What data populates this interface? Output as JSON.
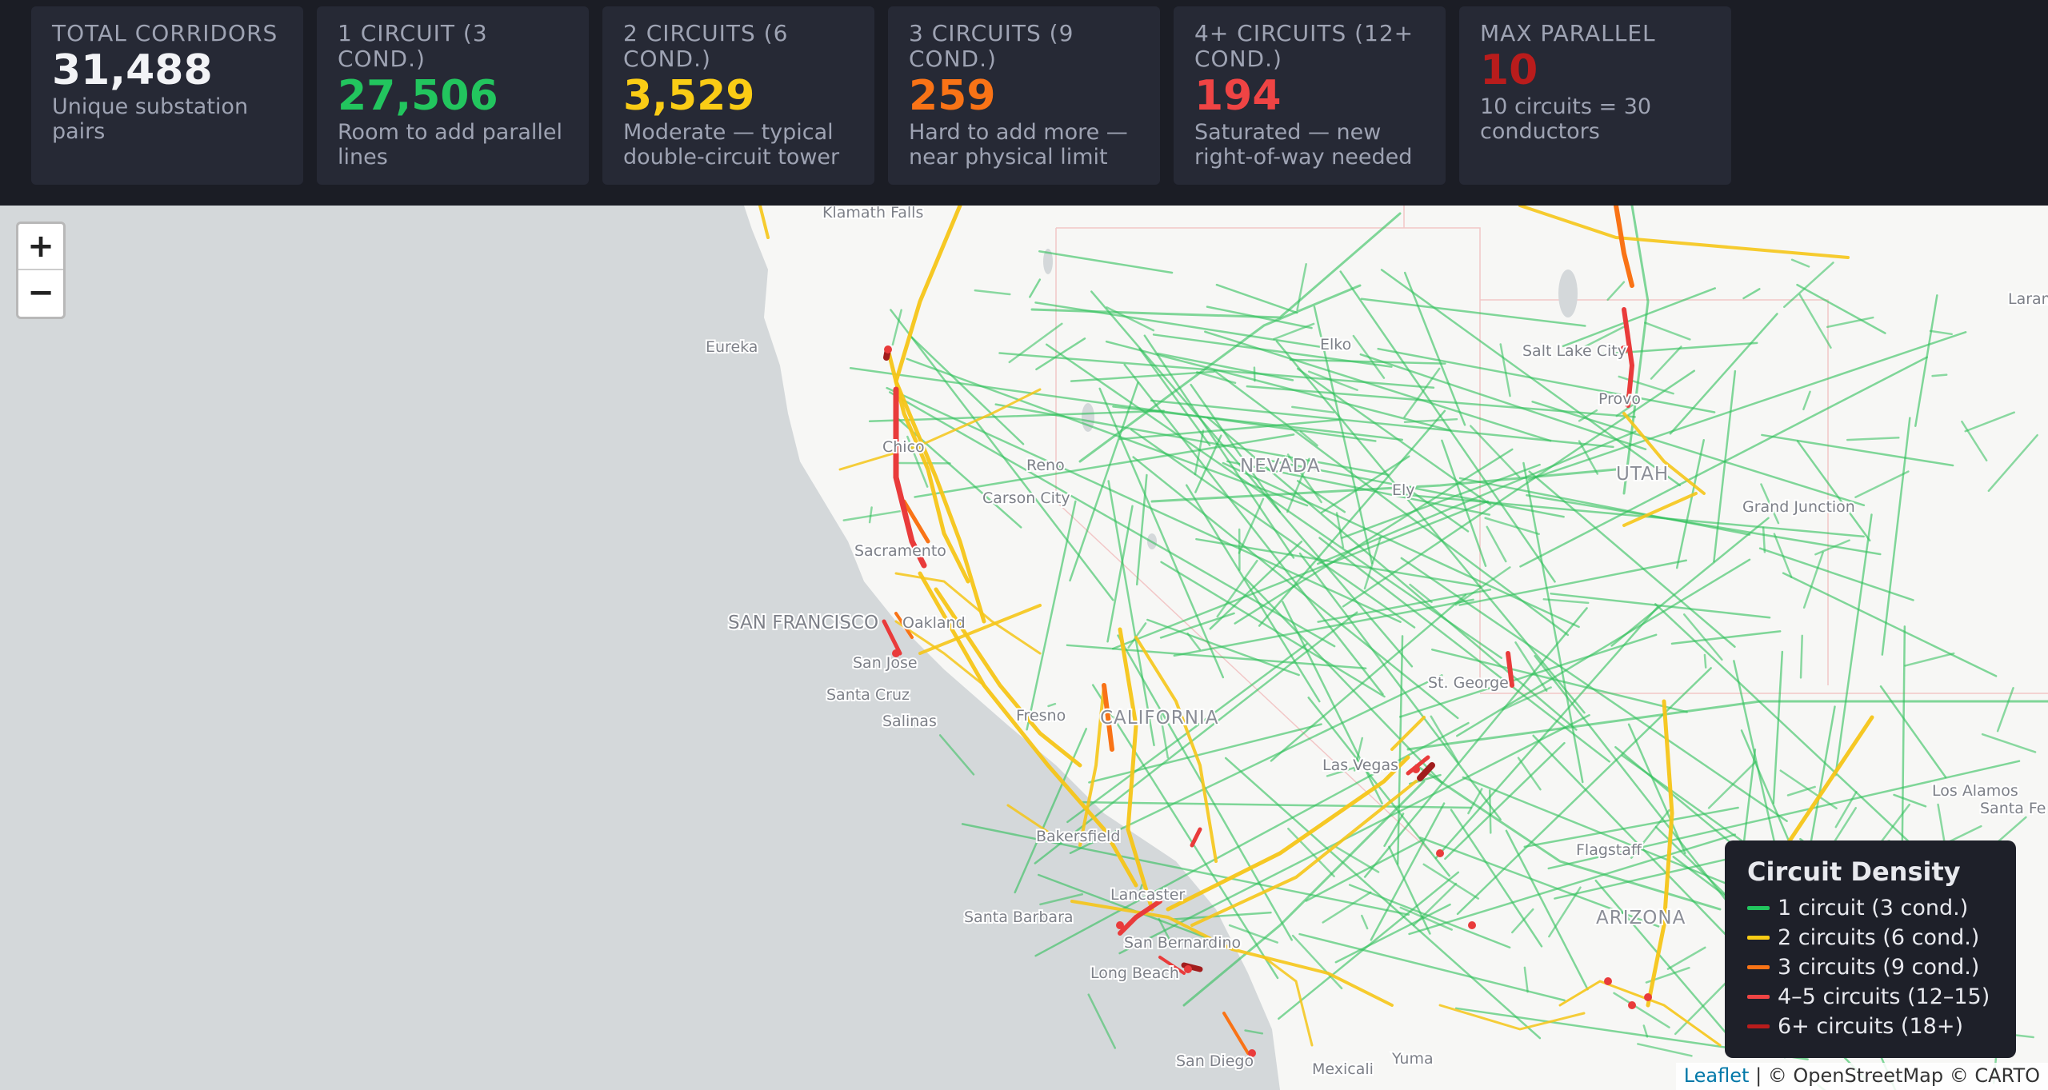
{
  "stats": [
    {
      "label": "TOTAL CORRIDORS",
      "value": "31,488",
      "sub": "Unique substation pairs",
      "color": "#f2f3f6"
    },
    {
      "label": "1 CIRCUIT (3 COND.)",
      "value": "27,506",
      "sub": "Room to add parallel lines",
      "color": "#22c55e"
    },
    {
      "label": "2 CIRCUITS (6 COND.)",
      "value": "3,529",
      "sub": "Moderate — typical double-circuit tower",
      "color": "#facc15"
    },
    {
      "label": "3 CIRCUITS (9 COND.)",
      "value": "259",
      "sub": "Hard to add more — near physical limit",
      "color": "#f97316"
    },
    {
      "label": "4+ CIRCUITS (12+ COND.)",
      "value": "194",
      "sub": "Saturated — new right-of-way needed",
      "color": "#ef4444"
    },
    {
      "label": "MAX PARALLEL",
      "value": "10",
      "sub": "10 circuits = 30 conductors",
      "color": "#b91c1c"
    }
  ],
  "zoom": {
    "in_label": "+",
    "out_label": "−"
  },
  "legend": {
    "title": "Circuit Density",
    "items": [
      {
        "label": "1 circuit (3 cond.)",
        "color": "#22c55e"
      },
      {
        "label": "2 circuits (6 cond.)",
        "color": "#facc15"
      },
      {
        "label": "3 circuits (9 cond.)",
        "color": "#f97316"
      },
      {
        "label": "4–5 circuits (12–15)",
        "color": "#ef4444"
      },
      {
        "label": "6+ circuits (18+)",
        "color": "#b91c1c"
      }
    ]
  },
  "map": {
    "states": [
      "NEVADA",
      "UTAH",
      "CALIFORNIA",
      "ARIZONA"
    ],
    "big_cities": [
      "SAN FRANCISCO"
    ],
    "cities": [
      "Klamath Falls",
      "Eureka",
      "Chico",
      "Reno",
      "Carson City",
      "Sacramento",
      "Oakland",
      "San Jose",
      "Santa Cruz",
      "Salinas",
      "Fresno",
      "Bakersfield",
      "Santa Barbara",
      "Lancaster",
      "San Bernardino",
      "Long Beach",
      "San Diego",
      "Mexicali",
      "Yuma",
      "Las Vegas",
      "St. George",
      "Elko",
      "Ely",
      "Salt Lake City",
      "Provo",
      "Grand Junction",
      "Flagstaff",
      "Los Alamos",
      "Santa Fe",
      "Laramie"
    ]
  },
  "attribution": {
    "leaflet": "Leaflet",
    "rest": " | © OpenStreetMap © CARTO"
  }
}
